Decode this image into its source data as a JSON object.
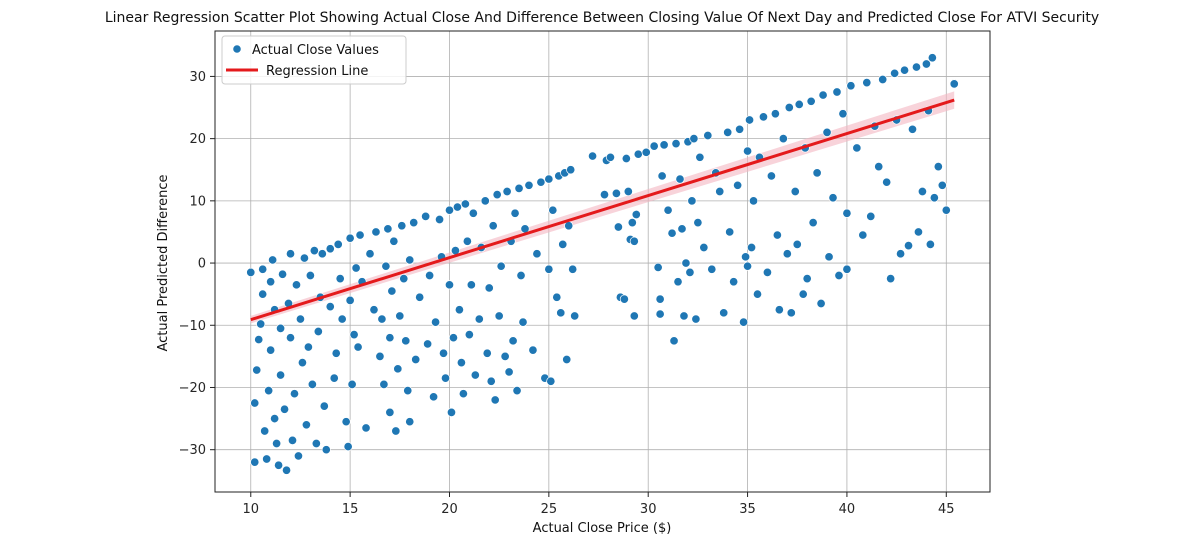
{
  "chart_data": {
    "type": "scatter",
    "title": "Linear Regression Scatter Plot Showing Actual Close And Difference Between Closing Value Of Next Day and Predicted Close For ATVI Security",
    "xlabel": "Actual Close Price ($)",
    "ylabel": "Actual Predicted Difference",
    "xlim": [
      8.2,
      47.2
    ],
    "ylim": [
      -36.8,
      37.3
    ],
    "x_ticks": [
      10,
      15,
      20,
      25,
      30,
      35,
      40,
      45
    ],
    "y_ticks": [
      -30,
      -20,
      -10,
      0,
      10,
      20,
      30
    ],
    "grid": true,
    "legend_position": "top-left",
    "legend": [
      "Actual Close Values",
      "Regression Line"
    ],
    "colors": {
      "points": "#1f77b4",
      "regression": "#e41a1c",
      "ci_band": "#f4b6c2"
    },
    "regression_line": {
      "x": [
        10,
        45.4
      ],
      "y": [
        -9.1,
        26.2
      ]
    },
    "series": [
      {
        "name": "Actual Close Values",
        "points": [
          [
            10.0,
            -1.5
          ],
          [
            10.2,
            -32.0
          ],
          [
            10.3,
            -17.2
          ],
          [
            10.2,
            -22.5
          ],
          [
            10.4,
            -12.3
          ],
          [
            10.5,
            -9.8
          ],
          [
            10.6,
            -5.0
          ],
          [
            10.6,
            -1.0
          ],
          [
            10.7,
            -27.0
          ],
          [
            10.8,
            -31.5
          ],
          [
            10.9,
            -20.5
          ],
          [
            11.0,
            -14.0
          ],
          [
            11.0,
            -3.0
          ],
          [
            11.1,
            0.5
          ],
          [
            11.2,
            -7.5
          ],
          [
            11.2,
            -25.0
          ],
          [
            11.3,
            -29.0
          ],
          [
            11.4,
            -32.5
          ],
          [
            11.5,
            -10.5
          ],
          [
            11.5,
            -18.0
          ],
          [
            11.6,
            -1.8
          ],
          [
            11.7,
            -23.5
          ],
          [
            11.8,
            -33.3
          ],
          [
            11.9,
            -6.5
          ],
          [
            12.0,
            -12.0
          ],
          [
            12.0,
            1.5
          ],
          [
            12.1,
            -28.5
          ],
          [
            12.2,
            -21.0
          ],
          [
            12.3,
            -3.5
          ],
          [
            12.4,
            -31.0
          ],
          [
            12.5,
            -9.0
          ],
          [
            12.6,
            -16.0
          ],
          [
            12.7,
            0.8
          ],
          [
            12.8,
            -26.0
          ],
          [
            12.9,
            -13.5
          ],
          [
            13.0,
            -2.0
          ],
          [
            13.1,
            -19.5
          ],
          [
            13.2,
            2.0
          ],
          [
            13.3,
            -29.0
          ],
          [
            13.4,
            -11.0
          ],
          [
            13.5,
            -5.5
          ],
          [
            13.6,
            1.5
          ],
          [
            13.7,
            -23.0
          ],
          [
            13.8,
            -30.0
          ],
          [
            14.0,
            -7.0
          ],
          [
            14.0,
            2.3
          ],
          [
            14.2,
            -18.5
          ],
          [
            14.3,
            -14.5
          ],
          [
            14.4,
            3.0
          ],
          [
            14.5,
            -2.5
          ],
          [
            14.6,
            -9.0
          ],
          [
            14.8,
            -25.5
          ],
          [
            14.9,
            -29.5
          ],
          [
            15.0,
            -6.0
          ],
          [
            15.0,
            4.0
          ],
          [
            15.1,
            -19.5
          ],
          [
            15.2,
            -11.5
          ],
          [
            15.3,
            -0.8
          ],
          [
            15.4,
            -13.5
          ],
          [
            15.5,
            4.5
          ],
          [
            15.6,
            -3.0
          ],
          [
            15.8,
            -26.5
          ],
          [
            16.0,
            1.5
          ],
          [
            16.2,
            -7.5
          ],
          [
            16.3,
            5.0
          ],
          [
            16.5,
            -15.0
          ],
          [
            16.6,
            -9.0
          ],
          [
            16.7,
            -19.5
          ],
          [
            16.8,
            -0.5
          ],
          [
            16.9,
            5.5
          ],
          [
            17.0,
            -24.0
          ],
          [
            17.0,
            -12.0
          ],
          [
            17.1,
            -4.5
          ],
          [
            17.2,
            3.5
          ],
          [
            17.3,
            -27.0
          ],
          [
            17.4,
            -17.0
          ],
          [
            17.5,
            -8.5
          ],
          [
            17.6,
            6.0
          ],
          [
            17.7,
            -2.5
          ],
          [
            17.8,
            -12.5
          ],
          [
            17.9,
            -20.5
          ],
          [
            18.0,
            -25.5
          ],
          [
            18.0,
            0.5
          ],
          [
            18.2,
            6.5
          ],
          [
            18.3,
            -15.5
          ],
          [
            18.5,
            -5.5
          ],
          [
            18.8,
            7.5
          ],
          [
            18.9,
            -13.0
          ],
          [
            19.0,
            -2.0
          ],
          [
            19.2,
            -21.5
          ],
          [
            19.3,
            -9.5
          ],
          [
            19.5,
            7.0
          ],
          [
            19.6,
            1.0
          ],
          [
            19.7,
            -14.5
          ],
          [
            19.8,
            -18.5
          ],
          [
            20.0,
            8.5
          ],
          [
            20.0,
            -3.5
          ],
          [
            20.1,
            -24.0
          ],
          [
            20.2,
            -12.0
          ],
          [
            20.3,
            2.0
          ],
          [
            20.4,
            9.0
          ],
          [
            20.5,
            -7.5
          ],
          [
            20.6,
            -16.0
          ],
          [
            20.7,
            -21.0
          ],
          [
            20.8,
            9.5
          ],
          [
            20.9,
            3.5
          ],
          [
            21.0,
            -11.5
          ],
          [
            21.1,
            -3.5
          ],
          [
            21.2,
            8.0
          ],
          [
            21.3,
            -18.0
          ],
          [
            21.5,
            -9.0
          ],
          [
            21.6,
            2.5
          ],
          [
            21.8,
            10.0
          ],
          [
            21.9,
            -14.5
          ],
          [
            22.0,
            -4.0
          ],
          [
            22.1,
            -19.0
          ],
          [
            22.2,
            6.0
          ],
          [
            22.3,
            -22.0
          ],
          [
            22.4,
            11.0
          ],
          [
            22.5,
            -8.5
          ],
          [
            22.6,
            -0.5
          ],
          [
            22.8,
            -15.0
          ],
          [
            22.9,
            11.5
          ],
          [
            23.0,
            -17.5
          ],
          [
            23.1,
            3.5
          ],
          [
            23.2,
            -12.5
          ],
          [
            23.3,
            8.0
          ],
          [
            23.4,
            -20.5
          ],
          [
            23.5,
            12.0
          ],
          [
            23.6,
            -2.0
          ],
          [
            23.7,
            -9.5
          ],
          [
            23.8,
            5.5
          ],
          [
            24.0,
            12.5
          ],
          [
            24.2,
            -14.0
          ],
          [
            24.4,
            1.5
          ],
          [
            24.6,
            13.0
          ],
          [
            24.8,
            -18.5
          ],
          [
            25.0,
            -1.0
          ],
          [
            25.0,
            13.5
          ],
          [
            25.1,
            -19.0
          ],
          [
            25.2,
            8.5
          ],
          [
            25.4,
            -5.5
          ],
          [
            25.5,
            14.0
          ],
          [
            25.6,
            -8.0
          ],
          [
            25.7,
            3.0
          ],
          [
            25.8,
            14.5
          ],
          [
            25.9,
            -15.5
          ],
          [
            26.0,
            6.0
          ],
          [
            26.1,
            15.0
          ],
          [
            26.2,
            -1.0
          ],
          [
            26.3,
            -8.5
          ],
          [
            27.2,
            17.2
          ],
          [
            27.8,
            11.0
          ],
          [
            27.9,
            16.5
          ],
          [
            28.1,
            17.0
          ],
          [
            28.4,
            11.2
          ],
          [
            28.5,
            5.8
          ],
          [
            28.6,
            -5.5
          ],
          [
            28.8,
            -5.8
          ],
          [
            28.9,
            16.8
          ],
          [
            29.0,
            11.5
          ],
          [
            29.1,
            3.8
          ],
          [
            29.2,
            6.5
          ],
          [
            29.3,
            3.5
          ],
          [
            29.4,
            7.8
          ],
          [
            29.5,
            17.5
          ],
          [
            29.3,
            -8.5
          ],
          [
            29.9,
            17.8
          ],
          [
            30.3,
            18.8
          ],
          [
            30.5,
            -0.7
          ],
          [
            30.6,
            -5.8
          ],
          [
            30.6,
            -8.2
          ],
          [
            30.7,
            14.0
          ],
          [
            30.8,
            19.0
          ],
          [
            31.0,
            8.5
          ],
          [
            31.2,
            4.8
          ],
          [
            31.3,
            -12.5
          ],
          [
            31.4,
            19.2
          ],
          [
            31.5,
            -3.0
          ],
          [
            31.6,
            13.5
          ],
          [
            31.7,
            5.5
          ],
          [
            31.8,
            -8.5
          ],
          [
            31.9,
            0.0
          ],
          [
            32.0,
            19.5
          ],
          [
            32.1,
            -1.5
          ],
          [
            32.2,
            10.0
          ],
          [
            32.3,
            20.0
          ],
          [
            32.4,
            -9.0
          ],
          [
            32.5,
            6.5
          ],
          [
            32.6,
            17.0
          ],
          [
            32.8,
            2.5
          ],
          [
            33.0,
            20.5
          ],
          [
            33.2,
            -1.0
          ],
          [
            33.4,
            14.5
          ],
          [
            33.6,
            11.5
          ],
          [
            33.8,
            -8.0
          ],
          [
            34.0,
            21.0
          ],
          [
            34.1,
            5.0
          ],
          [
            34.3,
            -3.0
          ],
          [
            34.5,
            12.5
          ],
          [
            34.6,
            21.5
          ],
          [
            34.8,
            -9.5
          ],
          [
            34.9,
            1.0
          ],
          [
            35.0,
            -0.5
          ],
          [
            35.0,
            18.0
          ],
          [
            35.1,
            23.0
          ],
          [
            35.2,
            2.5
          ],
          [
            35.3,
            10.0
          ],
          [
            35.5,
            -5.0
          ],
          [
            35.6,
            17.0
          ],
          [
            35.8,
            23.5
          ],
          [
            36.0,
            -1.5
          ],
          [
            36.2,
            14.0
          ],
          [
            36.4,
            24.0
          ],
          [
            36.5,
            4.5
          ],
          [
            36.6,
            -7.5
          ],
          [
            36.8,
            20.0
          ],
          [
            37.0,
            1.5
          ],
          [
            37.1,
            25.0
          ],
          [
            37.2,
            -8.0
          ],
          [
            37.4,
            11.5
          ],
          [
            37.5,
            3.0
          ],
          [
            37.6,
            25.5
          ],
          [
            37.8,
            -5.0
          ],
          [
            37.9,
            18.5
          ],
          [
            38.0,
            -2.5
          ],
          [
            38.2,
            26.0
          ],
          [
            38.3,
            6.5
          ],
          [
            38.5,
            14.5
          ],
          [
            38.7,
            -6.5
          ],
          [
            38.8,
            27.0
          ],
          [
            39.0,
            21.0
          ],
          [
            39.1,
            1.0
          ],
          [
            39.3,
            10.5
          ],
          [
            39.5,
            27.5
          ],
          [
            39.6,
            -2.0
          ],
          [
            39.8,
            24.0
          ],
          [
            40.0,
            -1.0
          ],
          [
            40.0,
            8.0
          ],
          [
            40.2,
            28.5
          ],
          [
            40.5,
            18.5
          ],
          [
            40.8,
            4.5
          ],
          [
            41.0,
            29.0
          ],
          [
            41.2,
            7.5
          ],
          [
            41.4,
            22.0
          ],
          [
            41.6,
            15.5
          ],
          [
            41.8,
            29.5
          ],
          [
            42.0,
            13.0
          ],
          [
            42.2,
            -2.5
          ],
          [
            42.4,
            30.5
          ],
          [
            42.5,
            23.0
          ],
          [
            42.7,
            1.5
          ],
          [
            42.9,
            31.0
          ],
          [
            43.1,
            2.8
          ],
          [
            43.3,
            21.5
          ],
          [
            43.5,
            31.5
          ],
          [
            43.6,
            5.0
          ],
          [
            43.8,
            11.5
          ],
          [
            44.0,
            32.0
          ],
          [
            44.1,
            24.5
          ],
          [
            44.2,
            3.0
          ],
          [
            44.3,
            33.0
          ],
          [
            44.4,
            10.5
          ],
          [
            44.6,
            15.5
          ],
          [
            44.8,
            12.5
          ],
          [
            45.0,
            8.5
          ],
          [
            45.4,
            28.8
          ]
        ]
      }
    ]
  }
}
